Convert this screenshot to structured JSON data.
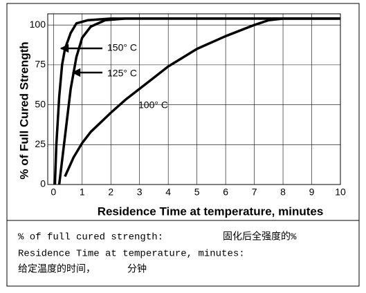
{
  "chart_data": {
    "type": "line",
    "xlabel": "Residence Time at temperature, minutes",
    "ylabel": "% of Full Cured Strength",
    "xlim": [
      -0.2,
      10
    ],
    "ylim": [
      0,
      107
    ],
    "xticks": [
      0,
      1,
      2,
      3,
      4,
      5,
      6,
      7,
      8,
      9,
      10
    ],
    "yticks": [
      0,
      25,
      50,
      75,
      100
    ],
    "grid": true,
    "series": [
      {
        "name": "150° C",
        "color": "#000000",
        "x": [
          0.05,
          0.1,
          0.2,
          0.3,
          0.4,
          0.6,
          0.8,
          1.2,
          2,
          10
        ],
        "values": [
          0,
          25,
          55,
          75,
          85,
          95,
          101,
          103,
          104,
          104
        ]
      },
      {
        "name": "125° C",
        "color": "#000000",
        "x": [
          0.2,
          0.4,
          0.6,
          0.8,
          1,
          1.3,
          1.8,
          2.5,
          10
        ],
        "values": [
          0,
          30,
          60,
          80,
          92,
          99,
          103,
          104,
          104
        ]
      },
      {
        "name": "100° C",
        "color": "#000000",
        "x": [
          0.4,
          0.7,
          1,
          1.3,
          2,
          2.5,
          3,
          3.5,
          4,
          5,
          6,
          7,
          7.5,
          8,
          10
        ],
        "values": [
          5,
          17,
          26,
          33,
          45,
          53,
          60,
          67,
          74,
          85,
          93,
          100,
          103,
          104,
          104
        ]
      }
    ]
  },
  "caption": {
    "lines": [
      [
        "% of full cured strength:",
        "固化后全强度的%"
      ],
      [
        "Residence Time at temperature, minutes:"
      ],
      [
        "给定温度的时间，",
        "分钟"
      ]
    ]
  }
}
